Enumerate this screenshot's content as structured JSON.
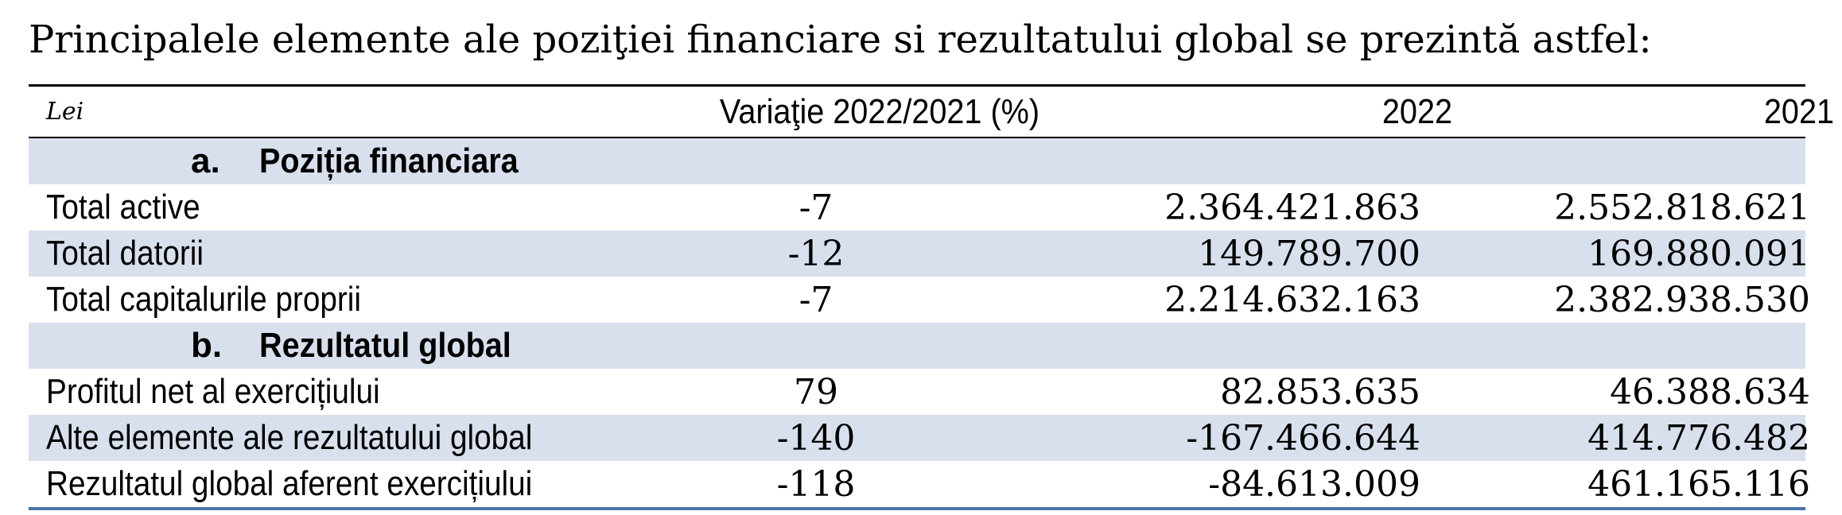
{
  "heading": "Principalele elemente ale poziţiei financiare si rezultatului global se prezintă astfel:",
  "table": {
    "header": {
      "unit": "Lei",
      "variation": "Variaţie 2022/2021 (%)",
      "year1": "2022",
      "year2": "2021"
    },
    "sections": [
      {
        "letter": "a.",
        "title": "Poziția financiara",
        "rows": [
          {
            "label": "Total active",
            "variation": "-7",
            "v2022": "2.364.421.863",
            "v2021": "2.552.818.621"
          },
          {
            "label": "Total datorii",
            "variation": "-12",
            "v2022": "149.789.700",
            "v2021": "169.880.091"
          },
          {
            "label": "Total capitalurile proprii",
            "variation": "-7",
            "v2022": "2.214.632.163",
            "v2021": "2.382.938.530"
          }
        ]
      },
      {
        "letter": "b.",
        "title": "Rezultatul global",
        "rows": [
          {
            "label": "Profitul net al exercițiului",
            "variation": "79",
            "v2022": "82.853.635",
            "v2021": "46.388.634"
          },
          {
            "label": "Alte elemente ale rezultatului global",
            "variation": "-140",
            "v2022": "-167.466.644",
            "v2021": "414.776.482"
          },
          {
            "label": "Rezultatul global aferent exercițiului",
            "variation": "-118",
            "v2022": "-84.613.009",
            "v2021": "461.165.116"
          }
        ]
      }
    ]
  },
  "colors": {
    "shade": "#d8e0ed",
    "bottom_rule": "#4a73a8"
  }
}
